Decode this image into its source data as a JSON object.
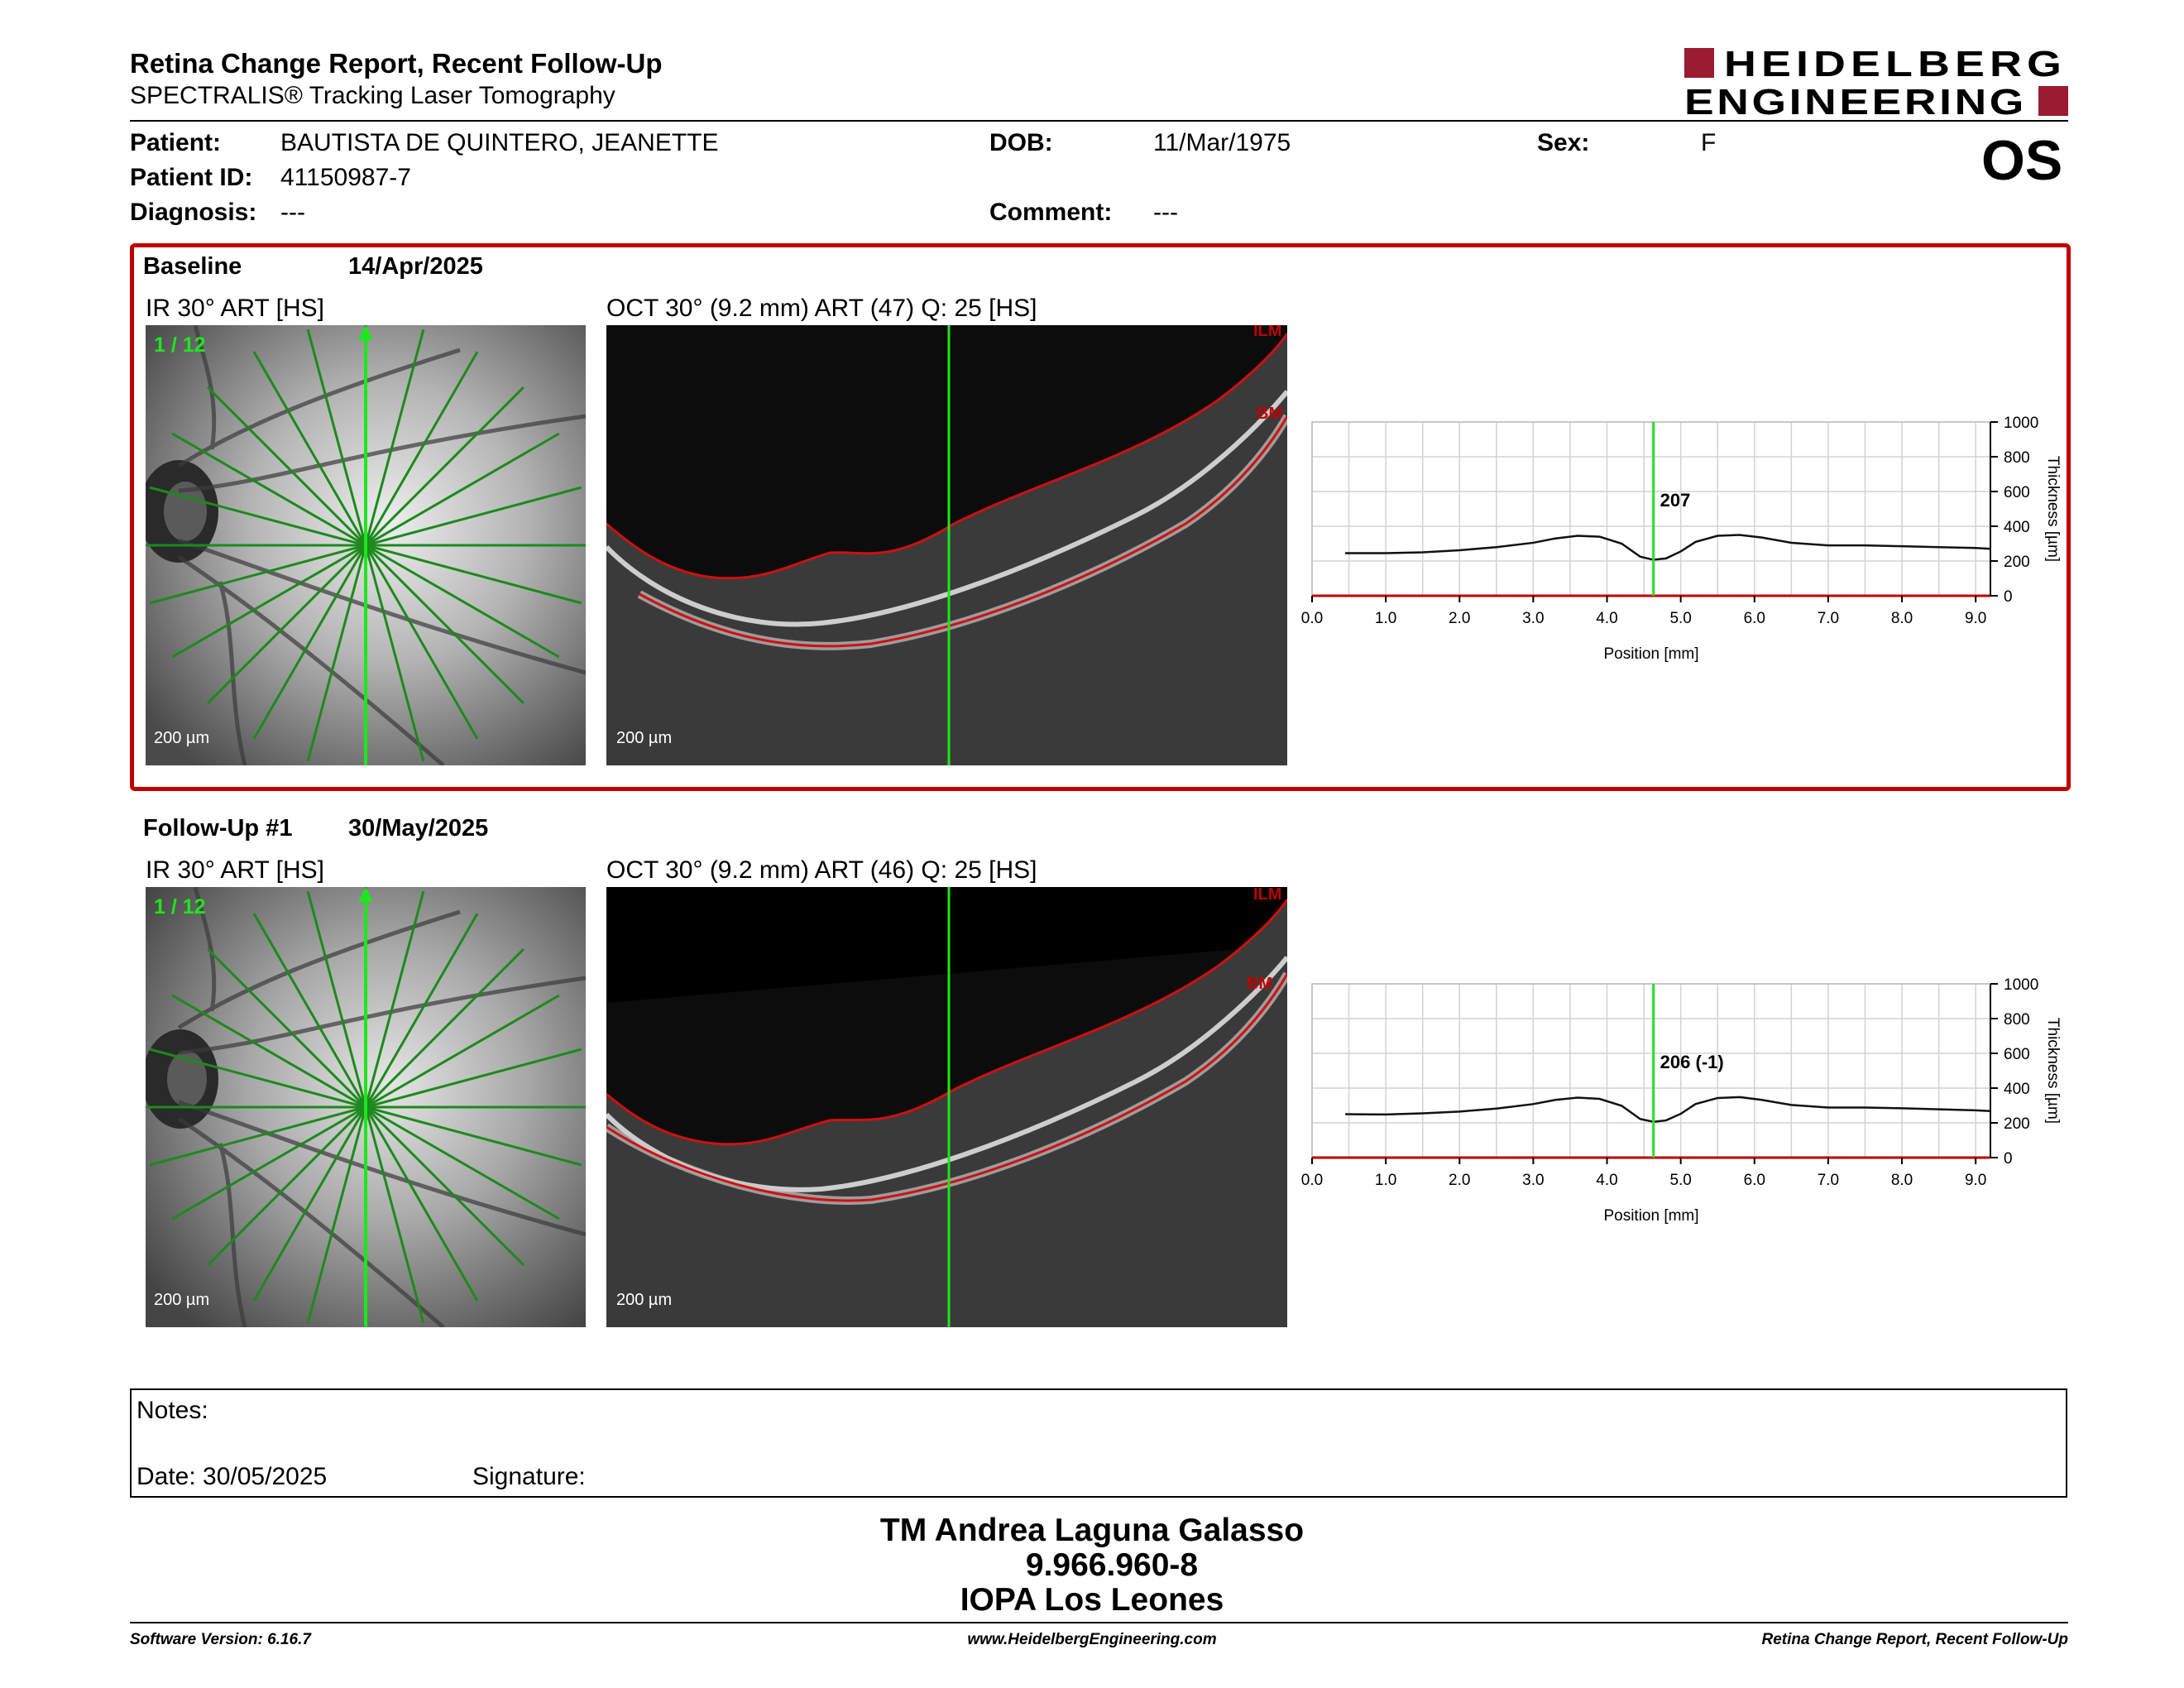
{
  "header": {
    "title": "Retina Change Report, Recent Follow-Up",
    "subtitle": "SPECTRALIS® Tracking Laser Tomography",
    "logo_line1": "HEIDELBERG",
    "logo_line2": "ENGINEERING",
    "eye": "OS"
  },
  "patient": {
    "patient_label": "Patient:",
    "name": "BAUTISTA DE QUINTERO, JEANETTE",
    "id_label": "Patient ID:",
    "id": "41150987-7",
    "diagnosis_label": "Diagnosis:",
    "diagnosis": "---",
    "dob_label": "DOB:",
    "dob": "11/Mar/1975",
    "comment_label": "Comment:",
    "comment": "---",
    "sex_label": "Sex:",
    "sex": "F"
  },
  "baseline": {
    "label": "Baseline",
    "date": "14/Apr/2025",
    "ir_label": "IR 30° ART [HS]",
    "oct_label": "OCT 30° (9.2 mm) ART (47) Q: 25 [HS]",
    "scan_index": "1 / 12",
    "ir_scale": "200 µm",
    "oct_scale": "200 µm",
    "ilm_tag": "ILM",
    "bm_tag": "BM"
  },
  "followup": {
    "label": "Follow-Up #1",
    "date": "30/May/2025",
    "ir_label": "IR 30° ART [HS]",
    "oct_label": "OCT 30° (9.2 mm) ART (46) Q: 25 [HS]",
    "scan_index": "1 / 12",
    "ir_scale": "200 µm",
    "oct_scale": "200 µm",
    "ilm_tag": "ILM",
    "bm_tag": "BM"
  },
  "chart_data": [
    {
      "type": "line",
      "title": "",
      "xlabel": "Position [mm]",
      "ylabel": "Thickness [µm]",
      "xlim": [
        0,
        9.2
      ],
      "ylim": [
        0,
        1000
      ],
      "xticks": [
        "0.0",
        "1.0",
        "2.0",
        "3.0",
        "4.0",
        "5.0",
        "6.0",
        "7.0",
        "8.0",
        "9.0"
      ],
      "yticks": [
        "0",
        "200",
        "400",
        "600",
        "800",
        "1000"
      ],
      "grid": true,
      "marker_x": 4.63,
      "marker_label": "207",
      "series": [
        {
          "x": [
            0.45,
            1.0,
            1.5,
            2.0,
            2.5,
            3.0,
            3.3,
            3.6,
            3.9,
            4.2,
            4.45,
            4.63,
            4.8,
            5.0,
            5.2,
            5.5,
            5.8,
            6.1,
            6.5,
            7.0,
            7.5,
            8.0,
            8.5,
            9.0,
            9.2
          ],
          "values": [
            245,
            245,
            250,
            262,
            280,
            305,
            330,
            345,
            340,
            300,
            225,
            207,
            215,
            255,
            310,
            345,
            350,
            335,
            305,
            290,
            290,
            285,
            280,
            275,
            270
          ]
        }
      ]
    },
    {
      "type": "line",
      "title": "",
      "xlabel": "Position [mm]",
      "ylabel": "Thickness [µm]",
      "xlim": [
        0,
        9.2
      ],
      "ylim": [
        0,
        1000
      ],
      "xticks": [
        "0.0",
        "1.0",
        "2.0",
        "3.0",
        "4.0",
        "5.0",
        "6.0",
        "7.0",
        "8.0",
        "9.0"
      ],
      "yticks": [
        "0",
        "200",
        "400",
        "600",
        "800",
        "1000"
      ],
      "grid": true,
      "marker_x": 4.63,
      "marker_label": "206 (-1)",
      "series": [
        {
          "x": [
            0.45,
            1.0,
            1.5,
            2.0,
            2.5,
            3.0,
            3.3,
            3.6,
            3.9,
            4.2,
            4.45,
            4.63,
            4.8,
            5.0,
            5.2,
            5.5,
            5.8,
            6.1,
            6.5,
            7.0,
            7.5,
            8.0,
            8.5,
            9.0,
            9.2
          ],
          "values": [
            250,
            248,
            255,
            265,
            282,
            308,
            332,
            345,
            338,
            298,
            222,
            206,
            214,
            252,
            308,
            343,
            348,
            332,
            303,
            288,
            288,
            284,
            278,
            272,
            268
          ]
        }
      ]
    }
  ],
  "notes": {
    "notes_label": "Notes:",
    "date_label": "Date: 30/05/2025",
    "signature_label": "Signature:"
  },
  "stamp": {
    "line1": "TM Andrea Laguna Galasso",
    "line2": "9.966.960-8",
    "line3": "IOPA Los Leones"
  },
  "footer": {
    "software": "Software Version: 6.16.7",
    "website": "www.HeidelbergEngineering.com",
    "report": "Retina Change Report, Recent Follow-Up"
  },
  "colors": {
    "accent_red": "#c00000",
    "logo_red": "#9b1b30",
    "scan_green": "#1ee61e",
    "ir_grid_green": "#1c8a1c"
  }
}
